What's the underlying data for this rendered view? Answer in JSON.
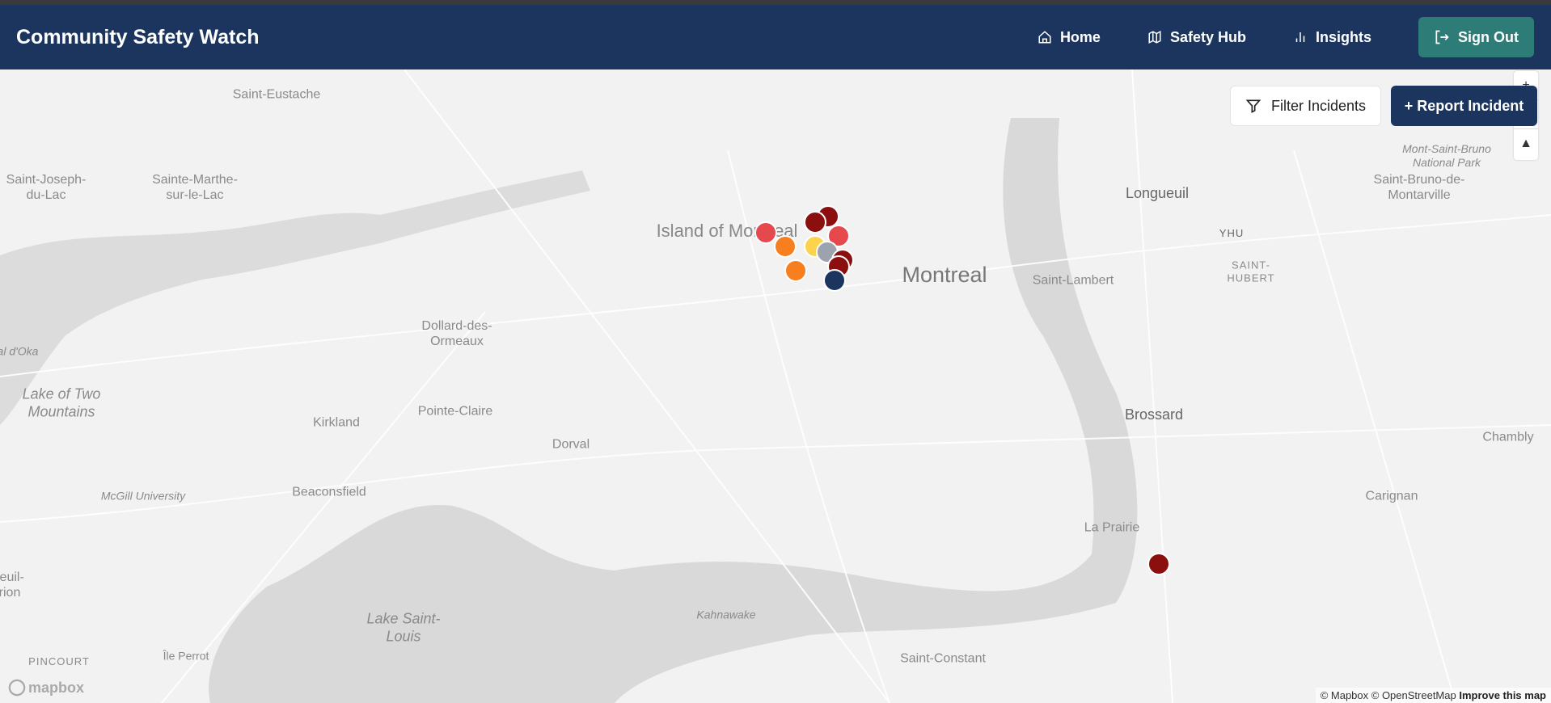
{
  "header": {
    "title": "Community Safety Watch",
    "nav": [
      {
        "label": "Home",
        "icon": "home-icon"
      },
      {
        "label": "Safety Hub",
        "icon": "map-icon"
      },
      {
        "label": "Insights",
        "icon": "bar-chart-icon"
      }
    ],
    "sign_out": "Sign Out"
  },
  "map": {
    "filter_label": "Filter Incidents",
    "report_label": "+ Report Incident",
    "zoom_in": "+",
    "compass": "▲",
    "labels": [
      "Saint-Eustache",
      "Saint-Joseph-du-Lac",
      "Sainte-Marthe-sur-le-Lac",
      "Island of Montreal",
      "Montreal",
      "Longueuil",
      "YHU",
      "SAINT-HUBERT",
      "Saint-Lambert",
      "Mont-Saint-Bruno National Park",
      "Saint-Bruno-de-Montarville",
      "Dollard-des-Ormeaux",
      "Lake of Two Mountains",
      "Pointe-Claire",
      "Kirkland",
      "Dorval",
      "Beaconsfield",
      "McGill University",
      "Brossard",
      "Chambly",
      "Carignan",
      "La Prairie",
      "Lake Saint-Louis",
      "Kahnawake",
      "Saint-Constant",
      "Île Perrot",
      "PINCOURT",
      "al d'Oka",
      "reuil-rion"
    ],
    "logo": "mapbox",
    "attribution": "© Mapbox © OpenStreetMap",
    "improve": "Improve this map",
    "marker_colors": {
      "high": "#e5484d",
      "critical": "#8b0f0f",
      "medium": "#f77f1f",
      "low": "#fcd34d",
      "unknown": "#9ca3af",
      "other": "#1c355e"
    }
  }
}
